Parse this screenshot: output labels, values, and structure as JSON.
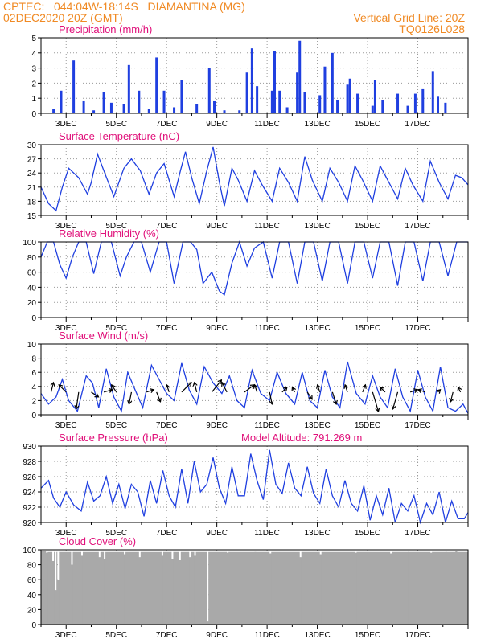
{
  "header": {
    "line1_left": "CPTEC:   044:04W-18:14S   DIAMANTINA (MG)",
    "line2_left": "02DEC2020 20Z (GMT)",
    "line2_right": "Vertical Grid Line: 20Z",
    "line3_right": "TQ0126L028"
  },
  "colors": {
    "series": "#1f3fe0",
    "title": "#e0107a",
    "header": "#f08a24",
    "cloud": "#a9a9a9"
  },
  "chart_data": [
    {
      "type": "bar",
      "title": "Precipitation (mm/h)",
      "ylim": [
        0,
        5
      ],
      "yticks": [
        0,
        1,
        2,
        3,
        4,
        5
      ],
      "xtick_labels": [
        "3DEC",
        "5DEC",
        "7DEC",
        "9DEC",
        "11DEC",
        "13DEC",
        "15DEC",
        "17DEC"
      ],
      "x": [
        0.5,
        0.8,
        1.3,
        1.7,
        2.1,
        2.5,
        2.8,
        3.3,
        3.5,
        3.9,
        4.3,
        4.6,
        4.9,
        5.3,
        5.6,
        6.2,
        6.7,
        6.9,
        7.3,
        7.9,
        8.2,
        8.4,
        8.6,
        9.2,
        9.3,
        9.5,
        9.8,
        10.2,
        10.3,
        10.5,
        11.1,
        11.3,
        11.6,
        11.8,
        12.2,
        12.3,
        12.6,
        13.2,
        13.3,
        13.6,
        14.2,
        14.6,
        14.9,
        15.2,
        15.6,
        15.8,
        16.1
      ],
      "values": [
        0.3,
        1.5,
        3.5,
        0.8,
        0.2,
        1.4,
        0.7,
        0.6,
        3.2,
        1.5,
        0.3,
        3.7,
        1.5,
        0.4,
        2.2,
        0.6,
        3.0,
        0.8,
        0.2,
        0.2,
        2.7,
        4.3,
        1.8,
        1.5,
        4.1,
        1.5,
        0.4,
        2.7,
        4.8,
        1.4,
        1.2,
        3.1,
        4.0,
        0.9,
        1.9,
        2.3,
        1.3,
        0.5,
        2.2,
        0.9,
        1.3,
        0.5,
        1.3,
        1.6,
        2.8,
        1.1,
        0.7
      ]
    },
    {
      "type": "line",
      "title": "Surface Temperature (nC)",
      "ylim": [
        15,
        30
      ],
      "yticks": [
        15,
        18,
        21,
        24,
        27,
        30
      ],
      "xtick_labels": [
        "3DEC",
        "5DEC",
        "7DEC",
        "9DEC",
        "11DEC",
        "13DEC",
        "15DEC",
        "17DEC"
      ],
      "x": [
        0,
        0.3,
        0.6,
        0.85,
        1.1,
        1.5,
        1.85,
        2.0,
        2.25,
        2.5,
        2.9,
        3.3,
        3.6,
        3.95,
        4.3,
        4.6,
        4.9,
        5.3,
        5.55,
        5.75,
        6.0,
        6.3,
        6.6,
        6.85,
        7.1,
        7.3,
        7.6,
        7.85,
        8.2,
        8.5,
        8.8,
        9.2,
        9.5,
        9.85,
        10.2,
        10.5,
        10.8,
        11.2,
        11.5,
        11.85,
        12.2,
        12.5,
        12.8,
        13.2,
        13.5,
        13.85,
        14.2,
        14.5,
        14.8,
        15.2,
        15.5,
        15.85,
        16.2,
        16.5,
        16.75,
        17.0
      ],
      "values": [
        21.0,
        17.5,
        16.0,
        21.0,
        25.0,
        23.0,
        19.5,
        22.0,
        28.0,
        24.5,
        19.0,
        25.0,
        27.0,
        24.5,
        19.5,
        24.0,
        26.0,
        19.0,
        24.5,
        28.5,
        23.0,
        17.5,
        24.5,
        29.5,
        22.0,
        17.0,
        25.0,
        22.5,
        18.0,
        24.5,
        21.5,
        18.0,
        25.0,
        22.0,
        18.0,
        27.5,
        22.5,
        18.0,
        25.0,
        22.0,
        18.0,
        25.5,
        22.5,
        18.0,
        25.5,
        22.0,
        18.5,
        25.0,
        21.5,
        18.0,
        26.5,
        22.0,
        18.5,
        23.5,
        23.0,
        21.5
      ]
    },
    {
      "type": "line",
      "title": "Relative Humidity (%)",
      "ylim": [
        0,
        100
      ],
      "yticks": [
        0,
        20,
        40,
        60,
        80,
        100
      ],
      "xtick_labels": [
        "3DEC",
        "5DEC",
        "7DEC",
        "9DEC",
        "11DEC",
        "13DEC",
        "15DEC",
        "17DEC"
      ],
      "x": [
        0,
        0.25,
        0.5,
        0.75,
        1.0,
        1.25,
        1.5,
        1.8,
        2.1,
        2.4,
        2.8,
        3.15,
        3.4,
        3.7,
        4.0,
        4.35,
        4.7,
        5.0,
        5.3,
        5.65,
        5.95,
        6.2,
        6.45,
        6.8,
        7.1,
        7.3,
        7.6,
        7.9,
        8.2,
        8.5,
        8.85,
        9.2,
        9.5,
        9.85,
        10.2,
        10.5,
        10.85,
        11.2,
        11.5,
        11.85,
        12.2,
        12.5,
        12.85,
        13.2,
        13.5,
        13.85,
        14.2,
        14.5,
        14.85,
        15.2,
        15.5,
        15.85,
        16.2,
        16.55,
        17.0
      ],
      "values": [
        80,
        100,
        100,
        70,
        52,
        80,
        100,
        100,
        58,
        100,
        100,
        55,
        80,
        100,
        100,
        60,
        100,
        100,
        45,
        100,
        100,
        90,
        45,
        60,
        35,
        30,
        72,
        100,
        68,
        92,
        100,
        52,
        100,
        100,
        45,
        100,
        100,
        48,
        100,
        100,
        45,
        100,
        100,
        52,
        100,
        100,
        42,
        100,
        100,
        48,
        100,
        100,
        55,
        100,
        100
      ]
    },
    {
      "type": "line",
      "title": "Surface Wind (m/s)",
      "ylim": [
        0,
        10
      ],
      "yticks": [
        0,
        2,
        4,
        6,
        8,
        10
      ],
      "xtick_labels": [
        "3DEC",
        "5DEC",
        "7DEC",
        "9DEC",
        "11DEC",
        "13DEC",
        "15DEC",
        "17DEC"
      ],
      "x": [
        0,
        0.3,
        0.6,
        0.85,
        1.1,
        1.45,
        1.8,
        2.05,
        2.3,
        2.6,
        2.9,
        3.2,
        3.45,
        3.75,
        4.05,
        4.4,
        4.7,
        5.0,
        5.3,
        5.6,
        5.9,
        6.2,
        6.5,
        6.85,
        7.2,
        7.5,
        7.8,
        8.1,
        8.4,
        8.75,
        9.1,
        9.4,
        9.75,
        10.1,
        10.4,
        10.7,
        11.0,
        11.3,
        11.6,
        11.9,
        12.2,
        12.55,
        12.9,
        13.2,
        13.5,
        13.8,
        14.1,
        14.4,
        14.7,
        15.0,
        15.3,
        15.6,
        15.9,
        16.2,
        16.5,
        16.8,
        17.0
      ],
      "values": [
        3.0,
        1.5,
        2.5,
        5.0,
        2.0,
        0.5,
        5.5,
        4.5,
        1.0,
        6.5,
        2.5,
        0.5,
        6.0,
        3.5,
        1.0,
        7.0,
        5.0,
        3.0,
        2.0,
        7.3,
        3.5,
        1.5,
        6.8,
        4.5,
        3.0,
        5.5,
        2.0,
        1.0,
        6.3,
        3.0,
        2.0,
        6.0,
        3.0,
        1.5,
        6.0,
        2.0,
        1.0,
        6.3,
        2.5,
        1.0,
        7.5,
        3.0,
        1.5,
        5.5,
        2.5,
        1.0,
        6.5,
        2.5,
        0.5,
        6.3,
        2.5,
        0.5,
        6.8,
        1.0,
        0.5,
        1.5,
        0.2
      ],
      "vectors_x": [
        0.4,
        1.0,
        1.5,
        2.0,
        2.5,
        3.0,
        3.6,
        4.2,
        4.6,
        5.1,
        5.6,
        6.2,
        6.8,
        7.4,
        8.1,
        8.6,
        9.1,
        9.6,
        10.1,
        10.6,
        11.1,
        11.6,
        12.2,
        12.8,
        13.2,
        13.7,
        14.2,
        14.7,
        15.3,
        15.8,
        16.4,
        16.7
      ],
      "vectors_u": [
        0.5,
        -1.5,
        -0.5,
        1.5,
        1.8,
        -1.0,
        -0.5,
        1.5,
        0.8,
        -0.5,
        2.0,
        -0.5,
        2.0,
        -1.0,
        2.0,
        -0.5,
        0.5,
        1.0,
        -0.5,
        1.0,
        -0.5,
        0.8,
        -0.5,
        0.6,
        1.2,
        -1.0,
        -1.0,
        1.5,
        -1.5,
        0.5,
        -0.5,
        -0.5
      ],
      "vectors_v": [
        2.0,
        1.5,
        -3.5,
        -1.0,
        0.5,
        1.5,
        -2.5,
        0.5,
        -2.0,
        1.5,
        2.0,
        2.0,
        2.5,
        2.0,
        1.5,
        1.5,
        -2.5,
        1.0,
        1.0,
        -1.5,
        1.5,
        -2.5,
        1.5,
        1.5,
        -4.0,
        1.0,
        -3.5,
        0.5,
        0.5,
        0.5,
        -2.0,
        1.0
      ]
    },
    {
      "type": "line",
      "title": "Surface Pressure (hPa)",
      "annotation": "Model Altitude: 791.269 m",
      "ylim": [
        920,
        930
      ],
      "yticks": [
        920,
        922,
        924,
        926,
        928,
        930
      ],
      "xtick_labels": [
        "3DEC",
        "5DEC",
        "7DEC",
        "9DEC",
        "11DEC",
        "13DEC",
        "15DEC",
        "17DEC"
      ],
      "x": [
        0,
        0.3,
        0.5,
        0.75,
        1.0,
        1.3,
        1.6,
        1.85,
        2.1,
        2.35,
        2.6,
        2.85,
        3.1,
        3.35,
        3.6,
        3.85,
        4.1,
        4.35,
        4.6,
        4.85,
        5.1,
        5.35,
        5.6,
        5.85,
        6.1,
        6.35,
        6.6,
        6.85,
        7.1,
        7.35,
        7.6,
        7.85,
        8.1,
        8.35,
        8.6,
        8.85,
        9.1,
        9.35,
        9.6,
        9.85,
        10.1,
        10.35,
        10.6,
        10.85,
        11.1,
        11.35,
        11.6,
        11.85,
        12.1,
        12.35,
        12.6,
        12.85,
        13.1,
        13.35,
        13.6,
        13.85,
        14.1,
        14.35,
        14.6,
        14.85,
        15.1,
        15.35,
        15.6,
        15.85,
        16.1,
        16.35,
        16.6,
        16.85,
        17.0
      ],
      "values": [
        924.5,
        925.5,
        923.2,
        922.0,
        924.0,
        922.3,
        921.5,
        925.3,
        922.8,
        923.5,
        926.0,
        922.5,
        925.0,
        921.8,
        925.0,
        924.0,
        920.8,
        925.5,
        922.5,
        926.8,
        923.5,
        922.0,
        927.0,
        922.5,
        928.0,
        924.0,
        925.0,
        928.5,
        924.5,
        922.5,
        927.3,
        923.5,
        923.5,
        929.0,
        925.5,
        923.0,
        929.5,
        925.0,
        923.8,
        927.8,
        924.5,
        923.5,
        927.3,
        923.8,
        922.5,
        927.0,
        923.5,
        922.0,
        925.5,
        922.5,
        921.5,
        924.8,
        920.3,
        923.5,
        921.0,
        924.5,
        920.0,
        922.5,
        921.5,
        923.5,
        920.0,
        922.5,
        921.0,
        924.0,
        920.0,
        922.8,
        920.5,
        920.5,
        921.3
      ]
    },
    {
      "type": "bar",
      "title": "Cloud Cover (%)",
      "ylim": [
        0,
        100
      ],
      "yticks": [
        0,
        20,
        40,
        60,
        80,
        100
      ],
      "xtick_labels": [
        "3DEC",
        "5DEC",
        "7DEC",
        "9DEC",
        "11DEC",
        "13DEC",
        "15DEC",
        "17DEC"
      ],
      "x": [
        0.2,
        0.45,
        0.55,
        0.65,
        1.2,
        1.6,
        2.3,
        2.5,
        3.3,
        3.9,
        4.8,
        5.2,
        5.5,
        5.9,
        6.1,
        6.6,
        7.4,
        8.5,
        9.1,
        10.3,
        11.1,
        12.5,
        13.9,
        14.6,
        15.5,
        16.1,
        16.5
      ],
      "values": [
        96,
        85,
        46,
        60,
        80,
        92,
        90,
        88,
        94,
        90,
        92,
        88,
        86,
        90,
        92,
        4,
        96,
        97,
        95,
        90,
        94,
        96,
        95,
        97,
        96,
        97,
        98
      ]
    }
  ]
}
